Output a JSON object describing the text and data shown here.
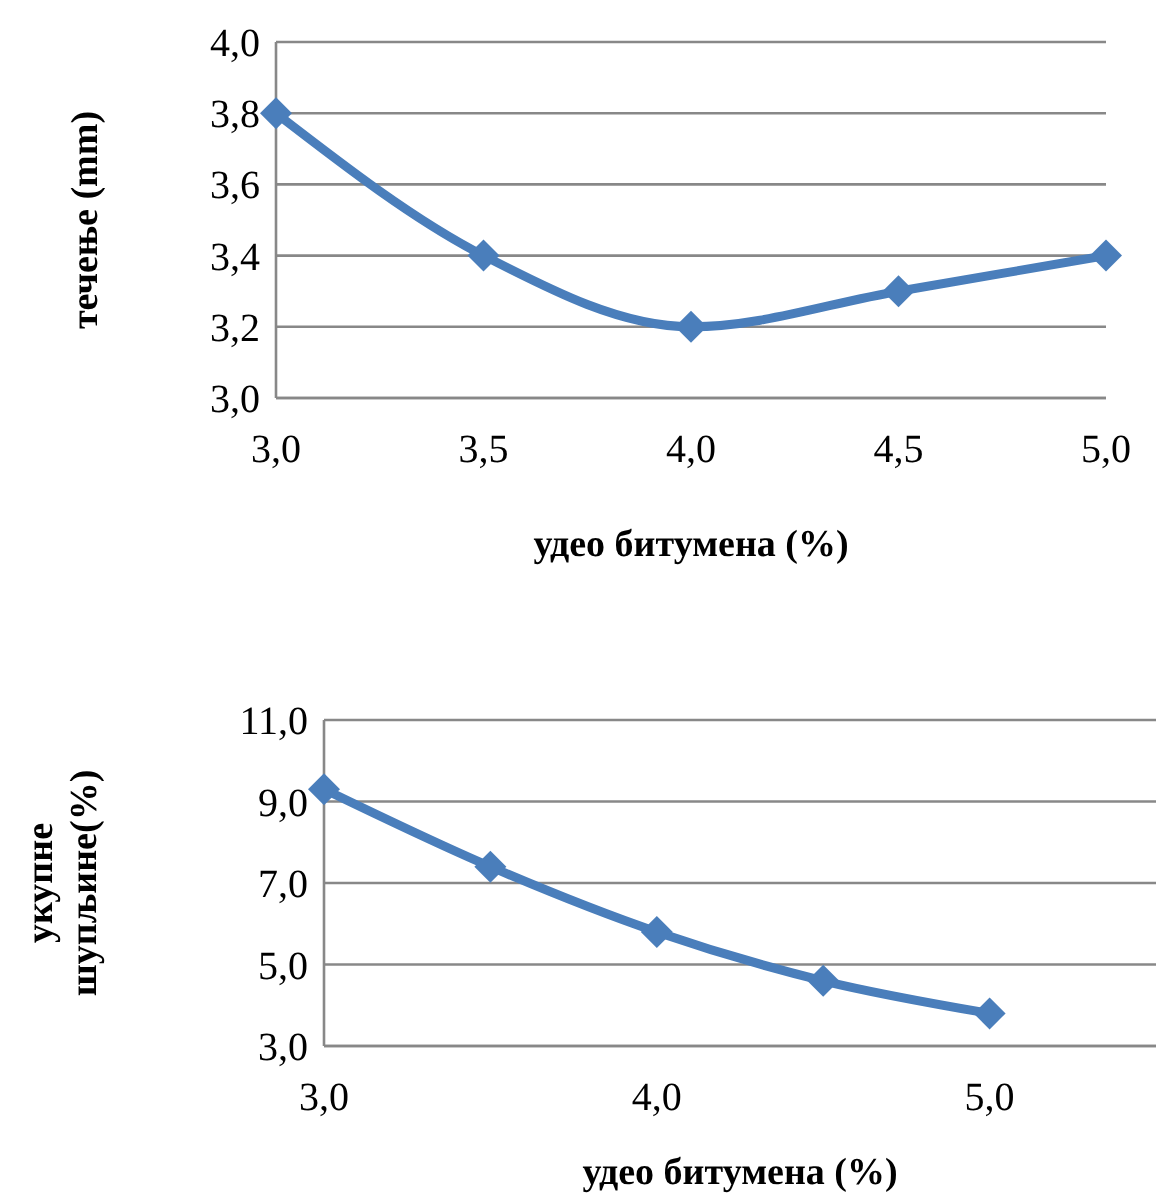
{
  "chart_data": [
    {
      "type": "line",
      "xlabel": "удео битумена (%)",
      "ylabel": "течење (mm)",
      "x": [
        3.0,
        3.5,
        4.0,
        4.5,
        5.0
      ],
      "series": [
        {
          "color": "#4a7ebb",
          "values": [
            3.8,
            3.4,
            3.2,
            3.3,
            3.4
          ]
        }
      ],
      "xlim": [
        3.0,
        5.0
      ],
      "xticks": [
        {
          "value": 3.0,
          "label": "3,0"
        },
        {
          "value": 3.5,
          "label": "3,5"
        },
        {
          "value": 4.0,
          "label": "4,0"
        },
        {
          "value": 4.5,
          "label": "4,5"
        },
        {
          "value": 5.0,
          "label": "5,0"
        }
      ],
      "ylim": [
        3.0,
        4.0
      ],
      "yticks": [
        {
          "value": 3.0,
          "label": "3,0"
        },
        {
          "value": 3.2,
          "label": "3,2"
        },
        {
          "value": 3.4,
          "label": "3,4"
        },
        {
          "value": 3.6,
          "label": "3,6"
        },
        {
          "value": 3.8,
          "label": "3,8"
        },
        {
          "value": 4.0,
          "label": "4,0"
        }
      ],
      "grid": "y",
      "marker": "diamond"
    },
    {
      "type": "line",
      "xlabel": "удео битумена (%)",
      "ylabel": "укупне шупљине(%)",
      "x": [
        3.0,
        3.5,
        4.0,
        4.5,
        5.0
      ],
      "series": [
        {
          "color": "#4a7ebb",
          "values": [
            9.3,
            7.4,
            5.8,
            4.6,
            3.8
          ]
        }
      ],
      "xlim": [
        3.0,
        5.5
      ],
      "xticks": [
        {
          "value": 3.0,
          "label": "3,0"
        },
        {
          "value": 4.0,
          "label": "4,0"
        },
        {
          "value": 5.0,
          "label": "5,0"
        }
      ],
      "ylim": [
        3.0,
        11.0
      ],
      "yticks": [
        {
          "value": 3.0,
          "label": "3,0"
        },
        {
          "value": 5.0,
          "label": "5,0"
        },
        {
          "value": 7.0,
          "label": "7,0"
        },
        {
          "value": 9.0,
          "label": "9,0"
        },
        {
          "value": 11.0,
          "label": "11,0"
        }
      ],
      "grid": "y",
      "marker": "diamond"
    }
  ]
}
